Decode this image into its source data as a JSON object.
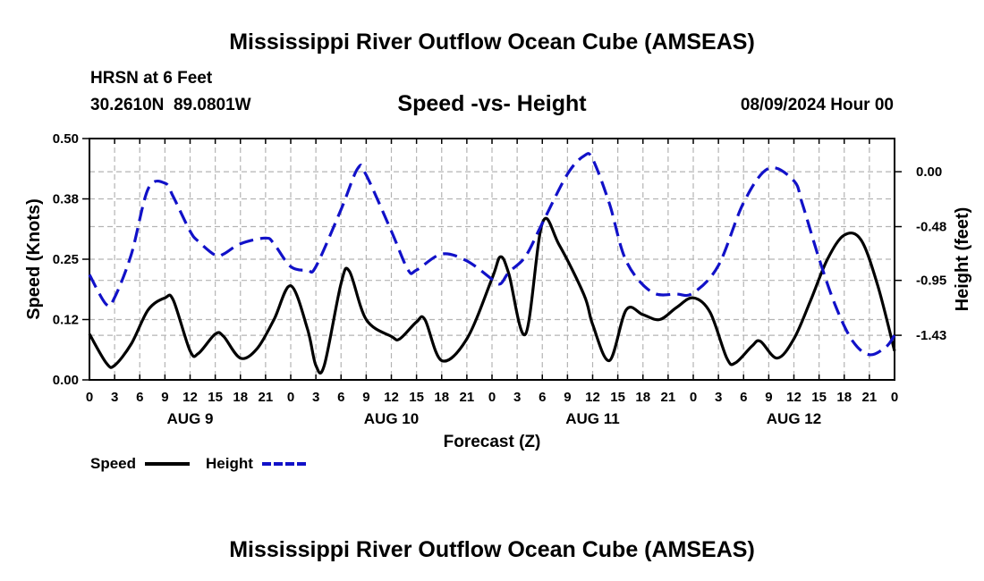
{
  "page": {
    "title": "Mississippi River Outflow Ocean Cube (AMSEAS)",
    "station": "HRSN at 6 Feet",
    "coords": "30.2610N  89.0801W",
    "date": "08/09/2024 Hour 00",
    "footer_title": "Mississippi River Outflow Ocean Cube (AMSEAS)"
  },
  "legend": {
    "speed_label": "Speed",
    "height_label": "Height"
  },
  "colors": {
    "speed": "#000000",
    "height": "#1111c8",
    "grid": "#b4b4b4"
  },
  "chart_data": {
    "type": "line",
    "title": "Speed -vs- Height",
    "xlabel": "Forecast (Z)",
    "ylabel": "Speed (Knots)",
    "y2label": "Height (feet)",
    "xlim": [
      0,
      96
    ],
    "ylim": [
      0,
      0.5
    ],
    "y2lim": [
      -1.82,
      0.29
    ],
    "x_tick_labels": [
      "0",
      "3",
      "6",
      "9",
      "12",
      "15",
      "18",
      "21",
      "0",
      "3",
      "6",
      "9",
      "12",
      "15",
      "18",
      "21",
      "0",
      "3",
      "6",
      "9",
      "12",
      "15",
      "18",
      "21",
      "0",
      "3",
      "6",
      "9",
      "12",
      "15",
      "18",
      "21",
      "0"
    ],
    "day_labels": [
      {
        "x": 12,
        "label": "AUG 9"
      },
      {
        "x": 36,
        "label": "AUG 10"
      },
      {
        "x": 60,
        "label": "AUG 11"
      },
      {
        "x": 84,
        "label": "AUG 12"
      }
    ],
    "y_ticks": [
      {
        "value": 0.0,
        "label": "0.00"
      },
      {
        "value": 0.125,
        "label": "0.12"
      },
      {
        "value": 0.25,
        "label": "0.25"
      },
      {
        "value": 0.375,
        "label": "0.38"
      },
      {
        "value": 0.5,
        "label": "0.50"
      }
    ],
    "y2_ticks": [
      {
        "value": 0.0,
        "label": "0.00"
      },
      {
        "value": -0.48,
        "label": "-0.48"
      },
      {
        "value": -0.95,
        "label": "-0.95"
      },
      {
        "value": -1.43,
        "label": "-1.43"
      }
    ],
    "series": [
      {
        "name": "Speed",
        "axis": "left",
        "style": "solid",
        "x": [
          0,
          2,
          3,
          5,
          7,
          9,
          10,
          12,
          13,
          15,
          16,
          18,
          20,
          22,
          24,
          26,
          27,
          28,
          30,
          31,
          33,
          36,
          37,
          39,
          40,
          42,
          45,
          48,
          49,
          50,
          52,
          54,
          56,
          59,
          60,
          62,
          64,
          66,
          68,
          70,
          72,
          74,
          76,
          77,
          79,
          80,
          82,
          84,
          86,
          88,
          90,
          92,
          94,
          96
        ],
        "y": [
          0.095,
          0.035,
          0.03,
          0.075,
          0.145,
          0.17,
          0.165,
          0.06,
          0.055,
          0.095,
          0.09,
          0.045,
          0.065,
          0.125,
          0.195,
          0.105,
          0.03,
          0.03,
          0.2,
          0.225,
          0.125,
          0.09,
          0.085,
          0.12,
          0.125,
          0.04,
          0.085,
          0.21,
          0.255,
          0.22,
          0.095,
          0.325,
          0.28,
          0.175,
          0.115,
          0.04,
          0.145,
          0.135,
          0.125,
          0.15,
          0.17,
          0.14,
          0.045,
          0.035,
          0.07,
          0.08,
          0.045,
          0.085,
          0.165,
          0.25,
          0.3,
          0.29,
          0.195,
          0.06
        ]
      },
      {
        "name": "Height",
        "axis": "right",
        "style": "dashed",
        "x": [
          0,
          2,
          3,
          5,
          7,
          9,
          10,
          12,
          13,
          15,
          16,
          18,
          21,
          22,
          24,
          26,
          27,
          30,
          32,
          33,
          36,
          38,
          39,
          42,
          45,
          48,
          49,
          50,
          52,
          54,
          57,
          59,
          60,
          62,
          64,
          67,
          70,
          72,
          75,
          78,
          81,
          84,
          85,
          87,
          89,
          91,
          93,
          95,
          96
        ],
        "y": [
          -0.9,
          -1.16,
          -1.1,
          -0.72,
          -0.15,
          -0.1,
          -0.22,
          -0.52,
          -0.61,
          -0.73,
          -0.72,
          -0.63,
          -0.58,
          -0.63,
          -0.83,
          -0.86,
          -0.83,
          -0.33,
          0.03,
          -0.03,
          -0.52,
          -0.86,
          -0.86,
          -0.72,
          -0.78,
          -0.94,
          -0.98,
          -0.88,
          -0.74,
          -0.45,
          -0.02,
          0.14,
          0.11,
          -0.28,
          -0.78,
          -1.05,
          -1.07,
          -1.06,
          -0.82,
          -0.27,
          0.03,
          -0.08,
          -0.28,
          -0.76,
          -1.18,
          -1.48,
          -1.6,
          -1.53,
          -1.43
        ]
      }
    ]
  }
}
